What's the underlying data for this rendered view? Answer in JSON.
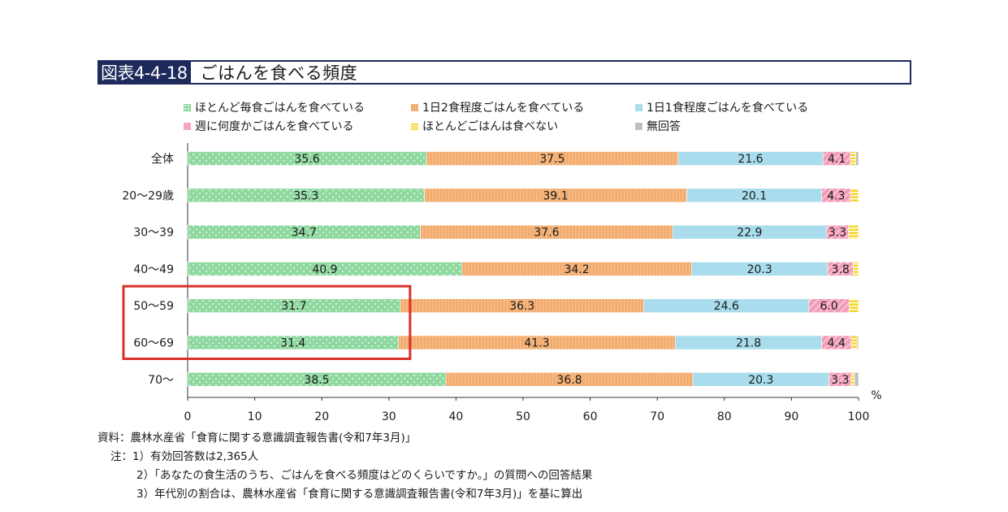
{
  "title": {
    "id": "図表4-4-18",
    "text": "ごはんを食べる頻度"
  },
  "legend": [
    {
      "label": "ほとんど毎食ごはんを食べている",
      "color": "#8fd9a0",
      "pattern": "dots"
    },
    {
      "label": "1日2食程度ごはんを食べている",
      "color": "#f5a96b",
      "pattern": "vstripes"
    },
    {
      "label": "1日1食程度ごはんを食べている",
      "color": "#a9dded",
      "pattern": "solid"
    },
    {
      "label": "週に何度かごはんを食べている",
      "color": "#f39ab6",
      "pattern": "diag"
    },
    {
      "label": "ほとんどごはんは食べない",
      "color": "#f6d62f",
      "pattern": "hstripes"
    },
    {
      "label": "無回答",
      "color": "#bfbfbf",
      "pattern": "solid"
    }
  ],
  "chart_data": {
    "type": "bar",
    "orientation": "horizontal",
    "stacked": true,
    "categories": [
      "全体",
      "20〜29歳",
      "30〜39",
      "40〜49",
      "50〜59",
      "60〜69",
      "70〜"
    ],
    "series": [
      {
        "name": "ほとんど毎食ごはんを食べている",
        "values": [
          35.6,
          35.3,
          34.7,
          40.9,
          31.7,
          31.4,
          38.5
        ]
      },
      {
        "name": "1日2食程度ごはんを食べている",
        "values": [
          37.5,
          39.1,
          37.6,
          34.2,
          36.3,
          41.3,
          36.8
        ]
      },
      {
        "name": "1日1食程度ごはんを食べている",
        "values": [
          21.6,
          20.1,
          22.9,
          20.3,
          24.6,
          21.8,
          20.3
        ]
      },
      {
        "name": "週に何度かごはんを食べている",
        "values": [
          4.1,
          4.3,
          3.3,
          3.8,
          6.0,
          4.4,
          3.3
        ]
      },
      {
        "name": "ほとんどごはんは食べない",
        "values": [
          0.8,
          1.2,
          1.5,
          0.8,
          1.4,
          0.9,
          0.5
        ]
      },
      {
        "name": "無回答",
        "values": [
          0.4,
          0.0,
          0.0,
          0.0,
          0.0,
          0.2,
          0.6
        ]
      }
    ],
    "data_labels_min": 3,
    "xlim": [
      0,
      100
    ],
    "xticks": [
      0,
      10,
      20,
      30,
      40,
      50,
      60,
      70,
      80,
      90,
      100
    ],
    "xunit": "%",
    "highlight_categories": [
      "50〜59",
      "60〜69"
    ],
    "highlight_series": "ほとんど毎食ごはんを食べている",
    "highlight_color": "#d9312b"
  },
  "notes": {
    "source": "資料：農林水産省「食育に関する意識調査報告書(令和7年3月)」",
    "note1": "注：1）有効回答数は2,365人",
    "note2": "2）「あなたの食生活のうち、ごはんを食べる頻度はどのくらいですか。」の質問への回答結果",
    "note3": "3）年代別の割合は、農林水産省「食育に関する意識調査報告書(令和7年3月)」を基に算出"
  }
}
